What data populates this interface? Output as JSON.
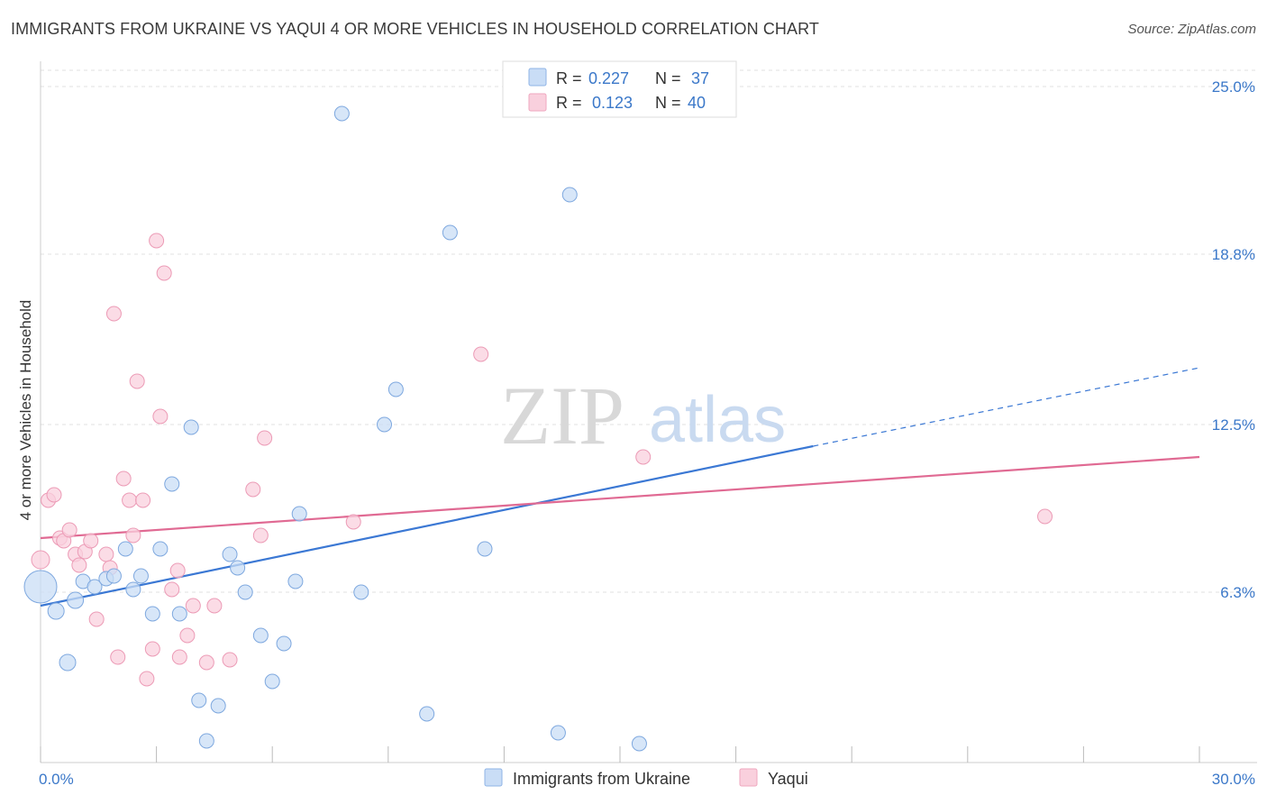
{
  "header": {
    "title": "IMMIGRANTS FROM UKRAINE VS YAQUI 4 OR MORE VEHICLES IN HOUSEHOLD CORRELATION CHART",
    "source": "Source: ZipAtlas.com"
  },
  "watermark": {
    "zip": "ZIP",
    "atlas": "atlas"
  },
  "legend": {
    "rows": [
      {
        "r_label": "R =",
        "r_value": "0.227",
        "n_label": "N =",
        "n_value": "37",
        "color": "#a8c8f0"
      },
      {
        "r_label": "R =",
        "r_value": "0.123",
        "n_label": "N =",
        "n_value": "40",
        "color": "#f6b8cb"
      }
    ]
  },
  "bottom_legend": {
    "items": [
      {
        "label": "Immigrants from Ukraine",
        "color": "#a8c8f0"
      },
      {
        "label": "Yaqui",
        "color": "#f6b8cb"
      }
    ]
  },
  "chart_data": {
    "type": "scatter",
    "title": "IMMIGRANTS FROM UKRAINE VS YAQUI 4 OR MORE VEHICLES IN HOUSEHOLD CORRELATION CHART",
    "xlabel": "",
    "ylabel": "4 or more Vehicles in Household",
    "xlim": [
      0,
      30
    ],
    "ylim": [
      0,
      25
    ],
    "x_tick_labels": [
      "0.0%",
      "30.0%"
    ],
    "y_tick_labels": [
      "25.0%",
      "18.8%",
      "12.5%",
      "6.3%"
    ],
    "y_ticks": [
      25.0,
      18.8,
      12.5,
      6.3
    ],
    "grid": true,
    "legend_placement": "top-center",
    "colors": {
      "ukraine": "#3b78d4",
      "yaqui": "#e06a93",
      "ukraine_fill": "#c9ddf6",
      "yaqui_fill": "#f9d0dd"
    },
    "series": [
      {
        "name": "Immigrants from Ukraine",
        "r": 0.227,
        "n": 37,
        "trend": {
          "x0": 0,
          "y0": 5.8,
          "x1": 20.0,
          "y1": 11.7,
          "dashed_to_x": 30.0,
          "dashed_to_y": 14.6
        },
        "points": [
          [
            0.0,
            6.5,
            18
          ],
          [
            0.4,
            5.6,
            9
          ],
          [
            0.7,
            3.7,
            9
          ],
          [
            0.9,
            6.0,
            9
          ],
          [
            1.1,
            6.7,
            8
          ],
          [
            1.4,
            6.5,
            8
          ],
          [
            1.7,
            6.8,
            8
          ],
          [
            1.9,
            6.9,
            8
          ],
          [
            2.2,
            7.9,
            8
          ],
          [
            2.4,
            6.4,
            8
          ],
          [
            2.6,
            6.9,
            8
          ],
          [
            2.9,
            5.5,
            8
          ],
          [
            3.1,
            7.9,
            8
          ],
          [
            3.4,
            10.3,
            8
          ],
          [
            3.6,
            5.5,
            8
          ],
          [
            3.9,
            12.4,
            8
          ],
          [
            4.1,
            2.3,
            8
          ],
          [
            4.3,
            0.8,
            8
          ],
          [
            4.6,
            2.1,
            8
          ],
          [
            4.9,
            7.7,
            8
          ],
          [
            5.1,
            7.2,
            8
          ],
          [
            5.3,
            6.3,
            8
          ],
          [
            5.7,
            4.7,
            8
          ],
          [
            6.0,
            3.0,
            8
          ],
          [
            6.3,
            4.4,
            8
          ],
          [
            6.6,
            6.7,
            8
          ],
          [
            6.7,
            9.2,
            8
          ],
          [
            7.8,
            24.0,
            8
          ],
          [
            8.3,
            6.3,
            8
          ],
          [
            8.9,
            12.5,
            8
          ],
          [
            9.2,
            13.8,
            8
          ],
          [
            10.0,
            1.8,
            8
          ],
          [
            10.6,
            19.6,
            8
          ],
          [
            11.5,
            7.9,
            8
          ],
          [
            13.4,
            1.1,
            8
          ],
          [
            13.7,
            21.0,
            8
          ],
          [
            15.5,
            0.7,
            8
          ]
        ]
      },
      {
        "name": "Yaqui",
        "r": 0.123,
        "n": 40,
        "trend": {
          "x0": 0,
          "y0": 8.3,
          "x1": 30.0,
          "y1": 11.3
        },
        "points": [
          [
            0.0,
            7.5,
            10
          ],
          [
            0.2,
            9.7,
            8
          ],
          [
            0.35,
            9.9,
            8
          ],
          [
            0.5,
            8.3,
            8
          ],
          [
            0.6,
            8.2,
            8
          ],
          [
            0.75,
            8.6,
            8
          ],
          [
            0.9,
            7.7,
            8
          ],
          [
            1.0,
            7.3,
            8
          ],
          [
            1.15,
            7.8,
            8
          ],
          [
            1.3,
            8.2,
            8
          ],
          [
            1.45,
            5.3,
            8
          ],
          [
            1.7,
            7.7,
            8
          ],
          [
            1.8,
            7.2,
            8
          ],
          [
            1.9,
            16.6,
            8
          ],
          [
            2.0,
            3.9,
            8
          ],
          [
            2.15,
            10.5,
            8
          ],
          [
            2.3,
            9.7,
            8
          ],
          [
            2.4,
            8.4,
            8
          ],
          [
            2.5,
            14.1,
            8
          ],
          [
            2.65,
            9.7,
            8
          ],
          [
            2.75,
            3.1,
            8
          ],
          [
            2.9,
            4.2,
            8
          ],
          [
            3.0,
            19.3,
            8
          ],
          [
            3.1,
            12.8,
            8
          ],
          [
            3.2,
            18.1,
            8
          ],
          [
            3.4,
            6.4,
            8
          ],
          [
            3.55,
            7.1,
            8
          ],
          [
            3.6,
            3.9,
            8
          ],
          [
            3.8,
            4.7,
            8
          ],
          [
            3.95,
            5.8,
            8
          ],
          [
            4.3,
            3.7,
            8
          ],
          [
            4.5,
            5.8,
            8
          ],
          [
            4.9,
            3.8,
            8
          ],
          [
            5.5,
            10.1,
            8
          ],
          [
            5.7,
            8.4,
            8
          ],
          [
            5.8,
            12.0,
            8
          ],
          [
            8.1,
            8.9,
            8
          ],
          [
            11.4,
            15.1,
            8
          ],
          [
            15.6,
            11.3,
            8
          ],
          [
            26.0,
            9.1,
            8
          ]
        ]
      }
    ]
  }
}
